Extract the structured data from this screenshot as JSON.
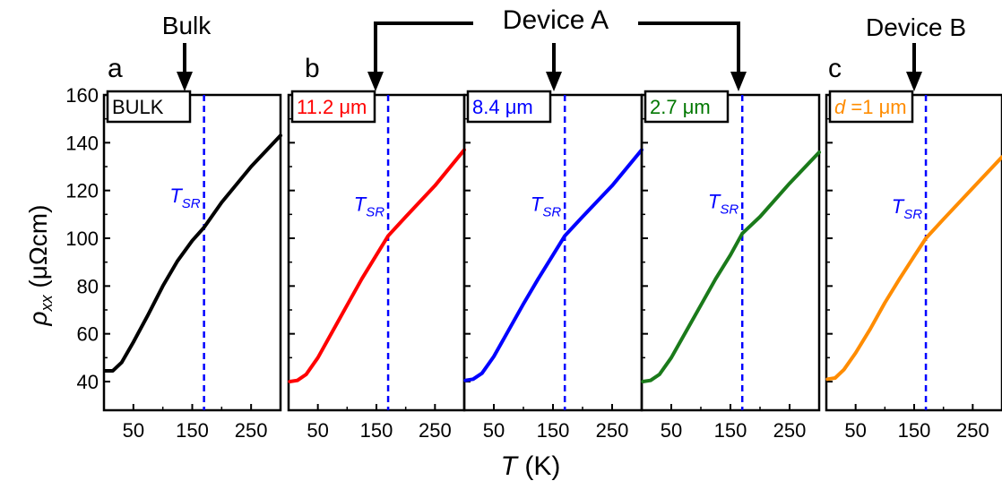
{
  "annotations": {
    "bulk": "Bulk",
    "device_a": "Device A",
    "device_b": "Device B",
    "panel_a": "a",
    "panel_b": "b",
    "panel_c": "c",
    "tsr_main": "T",
    "tsr_sub": "SR"
  },
  "axes": {
    "ylabel_symbol": "ρ",
    "ylabel_sub": "xx",
    "ylabel_unit": " (μΩcm)",
    "xlabel_symbol": "T",
    "xlabel_unit": " (K)"
  },
  "chart_data": {
    "type": "line",
    "xlim": [
      0,
      300
    ],
    "ylim": [
      28,
      160
    ],
    "x_ticks": [
      50,
      150,
      250
    ],
    "y_ticks": [
      40,
      60,
      80,
      100,
      120,
      140,
      160
    ],
    "t_sr": 170,
    "marker_color": "#0000ff",
    "panels": [
      {
        "label": "BULK",
        "label_prefix": "",
        "label_unit": "",
        "label_color": "#000000",
        "color": "#000000",
        "points": [
          [
            2,
            44.5
          ],
          [
            15,
            44.5
          ],
          [
            30,
            48
          ],
          [
            50,
            56.5
          ],
          [
            75,
            68
          ],
          [
            100,
            80
          ],
          [
            125,
            90.5
          ],
          [
            150,
            99
          ],
          [
            170,
            104.5
          ],
          [
            200,
            115
          ],
          [
            250,
            130
          ],
          [
            300,
            143
          ]
        ]
      },
      {
        "label": "11.2 ",
        "label_prefix": "",
        "label_unit": "μm",
        "label_color": "#ff0000",
        "color": "#ff0000",
        "points": [
          [
            2,
            40
          ],
          [
            15,
            40.5
          ],
          [
            30,
            43
          ],
          [
            50,
            50
          ],
          [
            75,
            61
          ],
          [
            100,
            72
          ],
          [
            125,
            83
          ],
          [
            150,
            93
          ],
          [
            170,
            101
          ],
          [
            200,
            109
          ],
          [
            250,
            122
          ],
          [
            300,
            137
          ]
        ]
      },
      {
        "label": "8.4 ",
        "label_prefix": "",
        "label_unit": "μm",
        "label_color": "#0000ff",
        "color": "#0000ff",
        "points": [
          [
            2,
            40.5
          ],
          [
            15,
            41
          ],
          [
            30,
            43.5
          ],
          [
            50,
            50.5
          ],
          [
            75,
            61.5
          ],
          [
            100,
            72.5
          ],
          [
            125,
            83
          ],
          [
            150,
            93
          ],
          [
            170,
            101
          ],
          [
            200,
            109
          ],
          [
            250,
            122
          ],
          [
            300,
            137
          ]
        ]
      },
      {
        "label": "2.7 ",
        "label_prefix": "",
        "label_unit": "μm",
        "label_color": "#007700",
        "color": "#1a7a1a",
        "points": [
          [
            2,
            40
          ],
          [
            15,
            40.5
          ],
          [
            30,
            43
          ],
          [
            50,
            50
          ],
          [
            75,
            61
          ],
          [
            100,
            72
          ],
          [
            125,
            83
          ],
          [
            150,
            93
          ],
          [
            170,
            102
          ],
          [
            200,
            109
          ],
          [
            250,
            123
          ],
          [
            300,
            136
          ]
        ]
      },
      {
        "label": " =1 ",
        "label_prefix": "d",
        "label_unit": "μm",
        "label_color": "#ff8c00",
        "color": "#ff8c00",
        "points": [
          [
            2,
            41
          ],
          [
            15,
            41.5
          ],
          [
            30,
            45
          ],
          [
            50,
            52
          ],
          [
            75,
            62
          ],
          [
            100,
            73
          ],
          [
            125,
            83
          ],
          [
            150,
            92.5
          ],
          [
            170,
            100
          ],
          [
            200,
            108
          ],
          [
            250,
            121
          ],
          [
            300,
            134
          ]
        ]
      }
    ]
  }
}
